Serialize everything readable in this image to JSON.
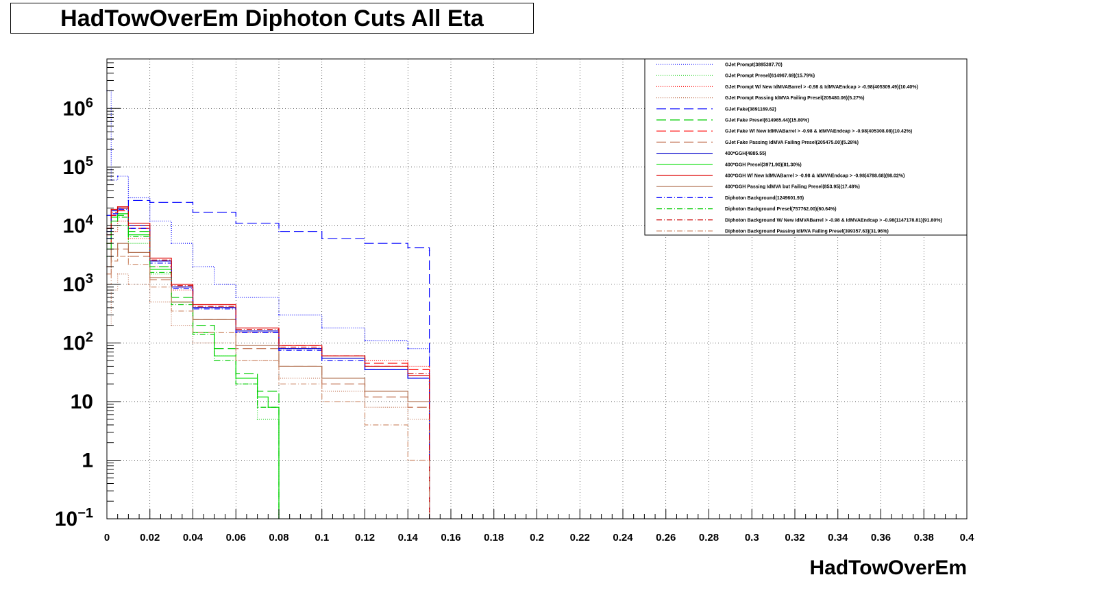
{
  "title": "HadTowOverEm Diphoton Cuts All Eta",
  "chart_data": {
    "type": "line",
    "title": "HadTowOverEm Diphoton Cuts All Eta",
    "xlabel": "HadTowOverEm",
    "ylabel": "",
    "xlim": [
      0,
      0.4
    ],
    "ylim": [
      0.1,
      7000000
    ],
    "yscale": "log",
    "grid": true,
    "legend_position": "top-right",
    "x_ticks": [
      "0",
      "0.02",
      "0.04",
      "0.06",
      "0.08",
      "0.1",
      "0.12",
      "0.14",
      "0.16",
      "0.18",
      "0.2",
      "0.22",
      "0.24",
      "0.26",
      "0.28",
      "0.3",
      "0.32",
      "0.34",
      "0.36",
      "0.38",
      "0.4"
    ],
    "y_ticks": [
      {
        "value": 0.1,
        "base": "10",
        "exp": "−1"
      },
      {
        "value": 1,
        "base": "1",
        "exp": ""
      },
      {
        "value": 10,
        "base": "10",
        "exp": ""
      },
      {
        "value": 100,
        "base": "10",
        "exp": "2"
      },
      {
        "value": 1000,
        "base": "10",
        "exp": "3"
      },
      {
        "value": 10000,
        "base": "10",
        "exp": "4"
      },
      {
        "value": 100000,
        "base": "10",
        "exp": "5"
      },
      {
        "value": 1000000,
        "base": "10",
        "exp": "6"
      }
    ],
    "series": [
      {
        "name": "GJet Prompt(3895387.70)",
        "color": "#0000ff",
        "dash": "1,2",
        "x": [
          0,
          0.002,
          0.005,
          0.01,
          0.02,
          0.03,
          0.04,
          0.05,
          0.06,
          0.08,
          0.1,
          0.12,
          0.14,
          0.15
        ],
        "y": [
          2000000,
          60000,
          70000,
          30000,
          12000,
          5000,
          2000,
          1000,
          600,
          300,
          180,
          110,
          80,
          70
        ]
      },
      {
        "name": "GJet Prompt Presel(614967.69)(15.79%)",
        "color": "#00cc00",
        "dash": "1,2",
        "x": [
          0,
          0.002,
          0.005,
          0.01,
          0.02,
          0.03,
          0.04,
          0.05,
          0.06,
          0.07,
          0.08
        ],
        "y": [
          3000,
          8000,
          10000,
          5000,
          1500,
          500,
          150,
          60,
          20,
          5,
          3
        ]
      },
      {
        "name": "GJet Prompt W/ New IdMVABarrel > -0.98 & IdMVAEndcap > -0.98(405309.49)(10.40%)",
        "color": "#ff0000",
        "dash": "1,2",
        "x": [
          0,
          0.002,
          0.005,
          0.01,
          0.02,
          0.03,
          0.04,
          0.06,
          0.08,
          0.1,
          0.12,
          0.14,
          0.15
        ],
        "y": [
          2000,
          8000,
          12000,
          6000,
          2000,
          800,
          400,
          150,
          80,
          60,
          50,
          40,
          40
        ]
      },
      {
        "name": "GJet Prompt Passing IdMVA Failing Presel(205480.06)(5.27%)",
        "color": "#c07050",
        "dash": "1,2",
        "x": [
          0,
          0.002,
          0.005,
          0.01,
          0.02,
          0.03,
          0.04,
          0.06,
          0.08,
          0.1,
          0.12,
          0.14,
          0.15
        ],
        "y": [
          200,
          800,
          1500,
          1000,
          500,
          200,
          100,
          50,
          25,
          15,
          8,
          5,
          3
        ]
      },
      {
        "name": "GJet Fake(3891169.62)",
        "color": "#0000ff",
        "dash": "14,6",
        "x": [
          0,
          0.005,
          0.01,
          0.02,
          0.04,
          0.06,
          0.08,
          0.1,
          0.12,
          0.14,
          0.15
        ],
        "y": [
          15000,
          20000,
          27000,
          25000,
          17000,
          11000,
          8000,
          6000,
          5000,
          4200,
          3800
        ]
      },
      {
        "name": "GJet Fake Presel(614965.44)(15.80%)",
        "color": "#00cc00",
        "dash": "14,6",
        "x": [
          0,
          0.002,
          0.005,
          0.01,
          0.02,
          0.03,
          0.04,
          0.05,
          0.06,
          0.07,
          0.08
        ],
        "y": [
          4000,
          12000,
          15000,
          8000,
          2000,
          600,
          200,
          80,
          30,
          15,
          10
        ]
      },
      {
        "name": "GJet Fake W/ New IdMVABarrel > -0.98 & IdMVAEndcap > -0.98(405308.08)(10.42%)",
        "color": "#ff0000",
        "dash": "14,6",
        "x": [
          0,
          0.002,
          0.005,
          0.01,
          0.02,
          0.03,
          0.04,
          0.06,
          0.08,
          0.1,
          0.12,
          0.14,
          0.15
        ],
        "y": [
          5000,
          15000,
          18000,
          9000,
          2500,
          900,
          400,
          180,
          90,
          60,
          45,
          35,
          30
        ]
      },
      {
        "name": "GJet Fake Passing IdMVA Failing Presel(205475.00)(5.28%)",
        "color": "#c07050",
        "dash": "14,6",
        "x": [
          0,
          0.002,
          0.005,
          0.01,
          0.02,
          0.03,
          0.04,
          0.06,
          0.08,
          0.1,
          0.12,
          0.14,
          0.15
        ],
        "y": [
          1500,
          3000,
          4000,
          3000,
          1200,
          500,
          250,
          80,
          40,
          20,
          12,
          8,
          6
        ]
      },
      {
        "name": "400*GGH(4885.55)",
        "color": "#0000cc",
        "dash": "",
        "x": [
          0,
          0.002,
          0.005,
          0.01,
          0.02,
          0.03,
          0.04,
          0.06,
          0.08,
          0.1,
          0.12,
          0.14,
          0.15
        ],
        "y": [
          8000,
          18000,
          20000,
          10000,
          2500,
          900,
          400,
          160,
          80,
          55,
          35,
          25,
          20
        ]
      },
      {
        "name": "400*GGH Presel(3971.90)(81.30%)",
        "color": "#00dd00",
        "dash": "",
        "x": [
          0,
          0.002,
          0.005,
          0.01,
          0.02,
          0.03,
          0.04,
          0.05,
          0.06,
          0.07,
          0.075,
          0.08
        ],
        "y": [
          6000,
          14000,
          16000,
          7000,
          1800,
          500,
          150,
          60,
          25,
          12,
          8,
          0.12
        ]
      },
      {
        "name": "400*GGH W/ New IdMVABarrel > -0.98 & IdMVAEndcap > -0.98(4788.68)(98.02%)",
        "color": "#dd0000",
        "dash": "",
        "x": [
          0,
          0.002,
          0.005,
          0.01,
          0.02,
          0.03,
          0.04,
          0.06,
          0.08,
          0.1,
          0.12,
          0.14,
          0.15
        ],
        "y": [
          9000,
          19000,
          21000,
          11000,
          2800,
          1000,
          450,
          180,
          90,
          60,
          40,
          28,
          22
        ]
      },
      {
        "name": "400*GGH Passing IdMVA but Failing Presel(853.95)(17.48%)",
        "color": "#b07050",
        "dash": "",
        "x": [
          0,
          0.002,
          0.005,
          0.01,
          0.02,
          0.03,
          0.04,
          0.06,
          0.08,
          0.1,
          0.12,
          0.14,
          0.15
        ],
        "y": [
          2000,
          4000,
          5000,
          3500,
          1300,
          500,
          250,
          90,
          40,
          25,
          15,
          10,
          8
        ]
      },
      {
        "name": "Diphoton Background(1249601.93)",
        "color": "#0000ff",
        "dash": "8,3,1,3",
        "x": [
          0,
          0.002,
          0.005,
          0.01,
          0.02,
          0.03,
          0.04,
          0.06,
          0.08,
          0.1,
          0.12,
          0.14,
          0.15
        ],
        "y": [
          6000,
          16000,
          19000,
          9000,
          2300,
          850,
          380,
          150,
          75,
          50,
          35,
          25,
          20
        ]
      },
      {
        "name": "Diphoton Background Presel(757762.00)(60.64%)",
        "color": "#00cc00",
        "dash": "8,3,1,3",
        "x": [
          0,
          0.002,
          0.005,
          0.01,
          0.02,
          0.03,
          0.04,
          0.05,
          0.06,
          0.07,
          0.08
        ],
        "y": [
          5000,
          12000,
          14000,
          6500,
          1600,
          450,
          140,
          50,
          20,
          8,
          5
        ]
      },
      {
        "name": "Diphoton Background W/ New IdMVABarrel > -0.98 & IdMVAEndcap > -0.98(1147178.81)(91.80%)",
        "color": "#cc0000",
        "dash": "8,3,1,3",
        "x": [
          0,
          0.002,
          0.005,
          0.01,
          0.02,
          0.03,
          0.04,
          0.06,
          0.08,
          0.1,
          0.12,
          0.14,
          0.15
        ],
        "y": [
          7000,
          17000,
          20000,
          10000,
          2600,
          950,
          420,
          170,
          85,
          60,
          40,
          30,
          25
        ]
      },
      {
        "name": "Diphoton Background Passing IdMVA Failing Presel(399357.63)(31.96%)",
        "color": "#d09070",
        "dash": "8,3,1,3",
        "x": [
          0,
          0.002,
          0.005,
          0.01,
          0.02,
          0.03,
          0.04,
          0.06,
          0.08,
          0.1,
          0.12,
          0.14,
          0.15
        ],
        "y": [
          1000,
          2500,
          3000,
          2200,
          900,
          350,
          150,
          50,
          20,
          10,
          4,
          1,
          0.3
        ]
      }
    ]
  }
}
